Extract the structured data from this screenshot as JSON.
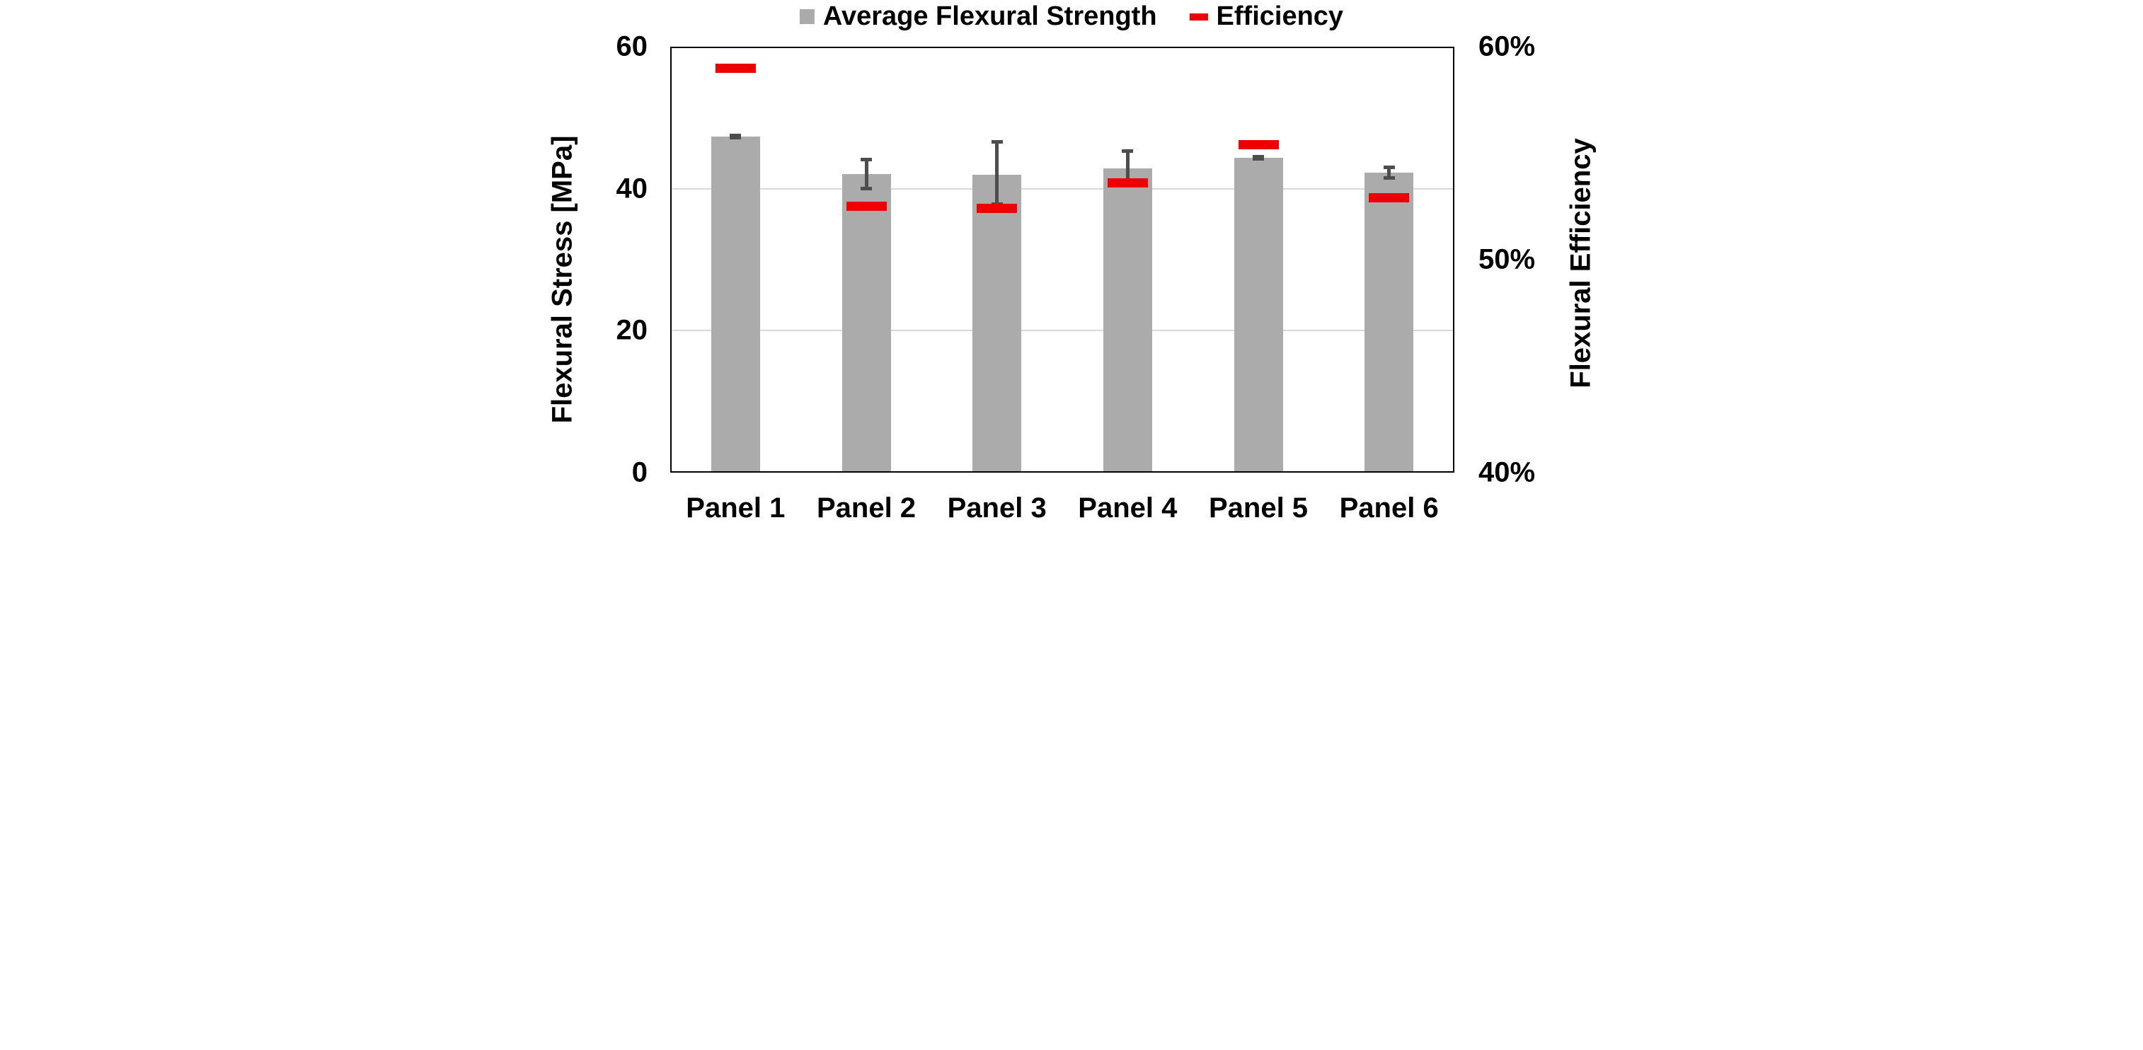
{
  "chart_data": {
    "type": "bar",
    "categories": [
      "Panel 1",
      "Panel 2",
      "Panel 3",
      "Panel 4",
      "Panel 5",
      "Panel 6"
    ],
    "series": [
      {
        "name": "Average Flexural Strength",
        "type": "bar",
        "axis": "left",
        "color": "#ababab",
        "values": [
          47.3,
          42.0,
          41.9,
          42.8,
          44.3,
          42.2
        ],
        "error_plus": [
          0.2,
          2.1,
          4.7,
          2.5,
          0.2,
          0.8
        ],
        "error_minus": [
          0.2,
          2.0,
          4.1,
          2.4,
          0.2,
          0.8
        ],
        "error_color": "#4d4d4d"
      },
      {
        "name": "Efficiency",
        "type": "dash",
        "axis": "right",
        "color": "#ee0000",
        "values": [
          59.0,
          52.5,
          52.4,
          53.6,
          55.4,
          52.9
        ]
      }
    ],
    "left_axis": {
      "label": "Flexural Stress [MPa]",
      "min": 0,
      "max": 60,
      "ticks": [
        60,
        40,
        20,
        0
      ],
      "tick_labels": [
        "60",
        "40",
        "20",
        "0"
      ]
    },
    "right_axis": {
      "label": "Flexural Efficiency",
      "min": 40,
      "max": 60,
      "ticks": [
        60,
        50,
        40
      ],
      "tick_labels": [
        "60%",
        "50%",
        "40%"
      ]
    },
    "gridlines_mpa": [
      40,
      20
    ],
    "gridline_color": "#d9d9d9",
    "legend_position": "top",
    "background": "#ffffff"
  }
}
